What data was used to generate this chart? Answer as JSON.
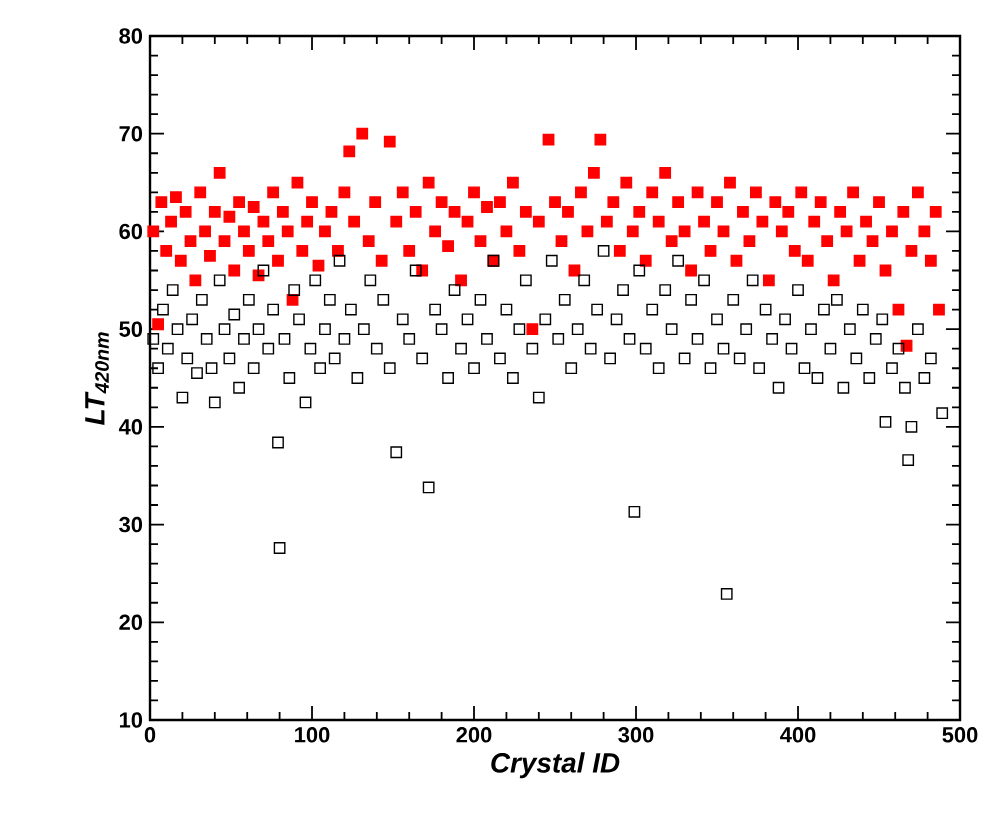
{
  "chart_data": {
    "type": "scatter",
    "xlabel": "Crystal ID",
    "ylabel": "LT$_{420nm}$",
    "xlim": [
      0,
      500
    ],
    "xticks": [
      0,
      100,
      200,
      300,
      400,
      500
    ],
    "ylim": [
      10,
      80
    ],
    "yticks": [
      10,
      20,
      30,
      40,
      50,
      60,
      70,
      80
    ],
    "grid": false,
    "marker": "square",
    "series": [
      {
        "color": "#ff0000",
        "x": [
          2,
          5,
          7,
          10,
          13,
          16,
          19,
          22,
          25,
          28,
          31,
          34,
          37,
          40,
          43,
          46,
          49,
          52,
          55,
          58,
          61,
          64,
          67,
          70,
          73,
          76,
          79,
          82,
          85,
          88,
          91,
          94,
          97,
          100,
          104,
          108,
          112,
          116,
          120,
          123,
          126,
          131,
          135,
          139,
          143,
          148,
          152,
          156,
          160,
          164,
          168,
          172,
          176,
          180,
          184,
          188,
          192,
          196,
          200,
          204,
          208,
          212,
          216,
          220,
          224,
          228,
          232,
          236,
          240,
          246,
          250,
          254,
          258,
          262,
          266,
          270,
          274,
          278,
          282,
          286,
          290,
          294,
          298,
          302,
          306,
          310,
          314,
          318,
          322,
          326,
          330,
          334,
          338,
          342,
          346,
          350,
          354,
          358,
          362,
          366,
          370,
          374,
          378,
          382,
          386,
          390,
          394,
          398,
          402,
          406,
          410,
          414,
          418,
          422,
          426,
          430,
          434,
          438,
          442,
          446,
          450,
          454,
          458,
          462,
          465,
          467,
          470,
          474,
          478,
          482,
          485,
          487
        ],
        "values": [
          60,
          50.5,
          63,
          58,
          61,
          63.5,
          57,
          62,
          59,
          55,
          64,
          60,
          57.5,
          62,
          66,
          59,
          61.5,
          56,
          63,
          60,
          58,
          62.5,
          55.5,
          61,
          59,
          64,
          57,
          62,
          60,
          53,
          65,
          58,
          61,
          63,
          56.5,
          60,
          62,
          58,
          64,
          68.2,
          61,
          70,
          59,
          63,
          57,
          69.2,
          61,
          64,
          58,
          62,
          56,
          65,
          60,
          63,
          58.5,
          62,
          55,
          61,
          64,
          59,
          62.5,
          57,
          63,
          60,
          65,
          58,
          62,
          50,
          61,
          69.4,
          63,
          59,
          62,
          56,
          64,
          60,
          66,
          69.4,
          61,
          63,
          58,
          65,
          60,
          62,
          57,
          64,
          61,
          66,
          59,
          63,
          60,
          56,
          64,
          61,
          58,
          63,
          60,
          65,
          57,
          62,
          59,
          64,
          61,
          55,
          63,
          60,
          62,
          58,
          64,
          57,
          61,
          63,
          59,
          55,
          62,
          60,
          64,
          57,
          61,
          59,
          63,
          56,
          60,
          52,
          62,
          48.3,
          58,
          64,
          60,
          57,
          62,
          52
        ]
      },
      {
        "color": "#000000",
        "x": [
          2,
          5,
          8,
          11,
          14,
          17,
          20,
          23,
          26,
          29,
          32,
          35,
          38,
          40,
          43,
          46,
          49,
          52,
          55,
          58,
          61,
          64,
          67,
          70,
          73,
          76,
          79,
          80,
          83,
          86,
          89,
          92,
          96,
          99,
          102,
          105,
          108,
          111,
          114,
          117,
          120,
          124,
          128,
          132,
          136,
          140,
          144,
          148,
          152,
          156,
          160,
          164,
          168,
          172,
          176,
          180,
          184,
          188,
          192,
          196,
          200,
          204,
          208,
          212,
          216,
          220,
          224,
          228,
          232,
          236,
          240,
          244,
          248,
          252,
          256,
          260,
          264,
          268,
          272,
          276,
          280,
          284,
          288,
          292,
          296,
          299,
          302,
          306,
          310,
          314,
          318,
          322,
          326,
          330,
          334,
          338,
          342,
          346,
          350,
          354,
          356,
          360,
          364,
          368,
          372,
          376,
          380,
          384,
          388,
          392,
          396,
          400,
          404,
          408,
          412,
          416,
          420,
          424,
          428,
          432,
          436,
          440,
          444,
          448,
          452,
          454,
          458,
          462,
          466,
          468,
          470,
          474,
          478,
          482,
          489
        ],
        "values": [
          49,
          46,
          52,
          48,
          54,
          50,
          43,
          47,
          51,
          45.5,
          53,
          49,
          46,
          42.5,
          55,
          50,
          47,
          51.5,
          44,
          49,
          53,
          46,
          50,
          56,
          48,
          52,
          38.4,
          27.6,
          49,
          45,
          54,
          51,
          42.5,
          48,
          55,
          46,
          50,
          53,
          47,
          57,
          49,
          52,
          45,
          50,
          55,
          48,
          53,
          46,
          37.4,
          51,
          49,
          56,
          47,
          33.8,
          52,
          50,
          45,
          54,
          48,
          51,
          46,
          53,
          49,
          57,
          47,
          52,
          45,
          50,
          55,
          48,
          43,
          51,
          57,
          49,
          53,
          46,
          50,
          55,
          48,
          52,
          58,
          47,
          51,
          54,
          49,
          31.3,
          56,
          48,
          52,
          46,
          54,
          50,
          57,
          47,
          53,
          49,
          55,
          46,
          51,
          48,
          22.9,
          53,
          47,
          50,
          55,
          46,
          52,
          49,
          44,
          51,
          48,
          54,
          46,
          50,
          45,
          52,
          48,
          53,
          44,
          50,
          47,
          52,
          45,
          49,
          51,
          40.5,
          46,
          48,
          44,
          36.6,
          40,
          50,
          45,
          47,
          41.4
        ]
      }
    ]
  }
}
